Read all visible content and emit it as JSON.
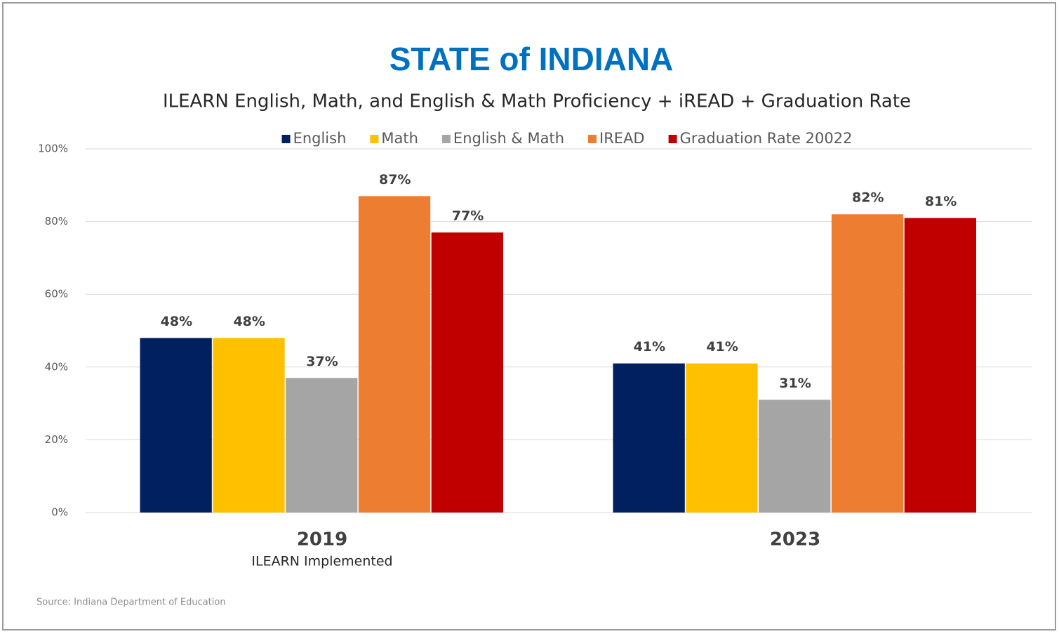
{
  "chart_data": {
    "type": "bar",
    "title": "STATE of INDIANA",
    "subtitle": "ILEARN English, Math, and English & Math Proficiency + iREAD + Graduation Rate",
    "categories": [
      "2019",
      "2023"
    ],
    "category_sublabels": [
      "ILEARN Implemented",
      null
    ],
    "series": [
      {
        "name": "English",
        "color": "#002060",
        "values": [
          48,
          41
        ],
        "value_labels": [
          "48%",
          "41%"
        ]
      },
      {
        "name": "Math",
        "color": "#ffc000",
        "values": [
          48,
          41
        ],
        "value_labels": [
          "48%",
          "41%"
        ]
      },
      {
        "name": "English & Math",
        "color": "#a5a5a5",
        "values": [
          37,
          31
        ],
        "value_labels": [
          "37%",
          "31%"
        ]
      },
      {
        "name": "IREAD",
        "color": "#ed7d31",
        "values": [
          87,
          82
        ],
        "value_labels": [
          "87%",
          "82%"
        ]
      },
      {
        "name": "Graduation Rate 20022",
        "color": "#c00000",
        "values": [
          77,
          81
        ],
        "value_labels": [
          "77%",
          "81%"
        ]
      }
    ],
    "ylim": [
      0,
      100
    ],
    "yticks": [
      {
        "value": 0,
        "label": "0%"
      },
      {
        "value": 20,
        "label": "20%"
      },
      {
        "value": 40,
        "label": "40%"
      },
      {
        "value": 60,
        "label": "60%"
      },
      {
        "value": 80,
        "label": "80%"
      },
      {
        "value": 100,
        "label": "100%"
      }
    ],
    "grid": true,
    "legend": "top",
    "source": "Source: Indiana Department of Education"
  }
}
